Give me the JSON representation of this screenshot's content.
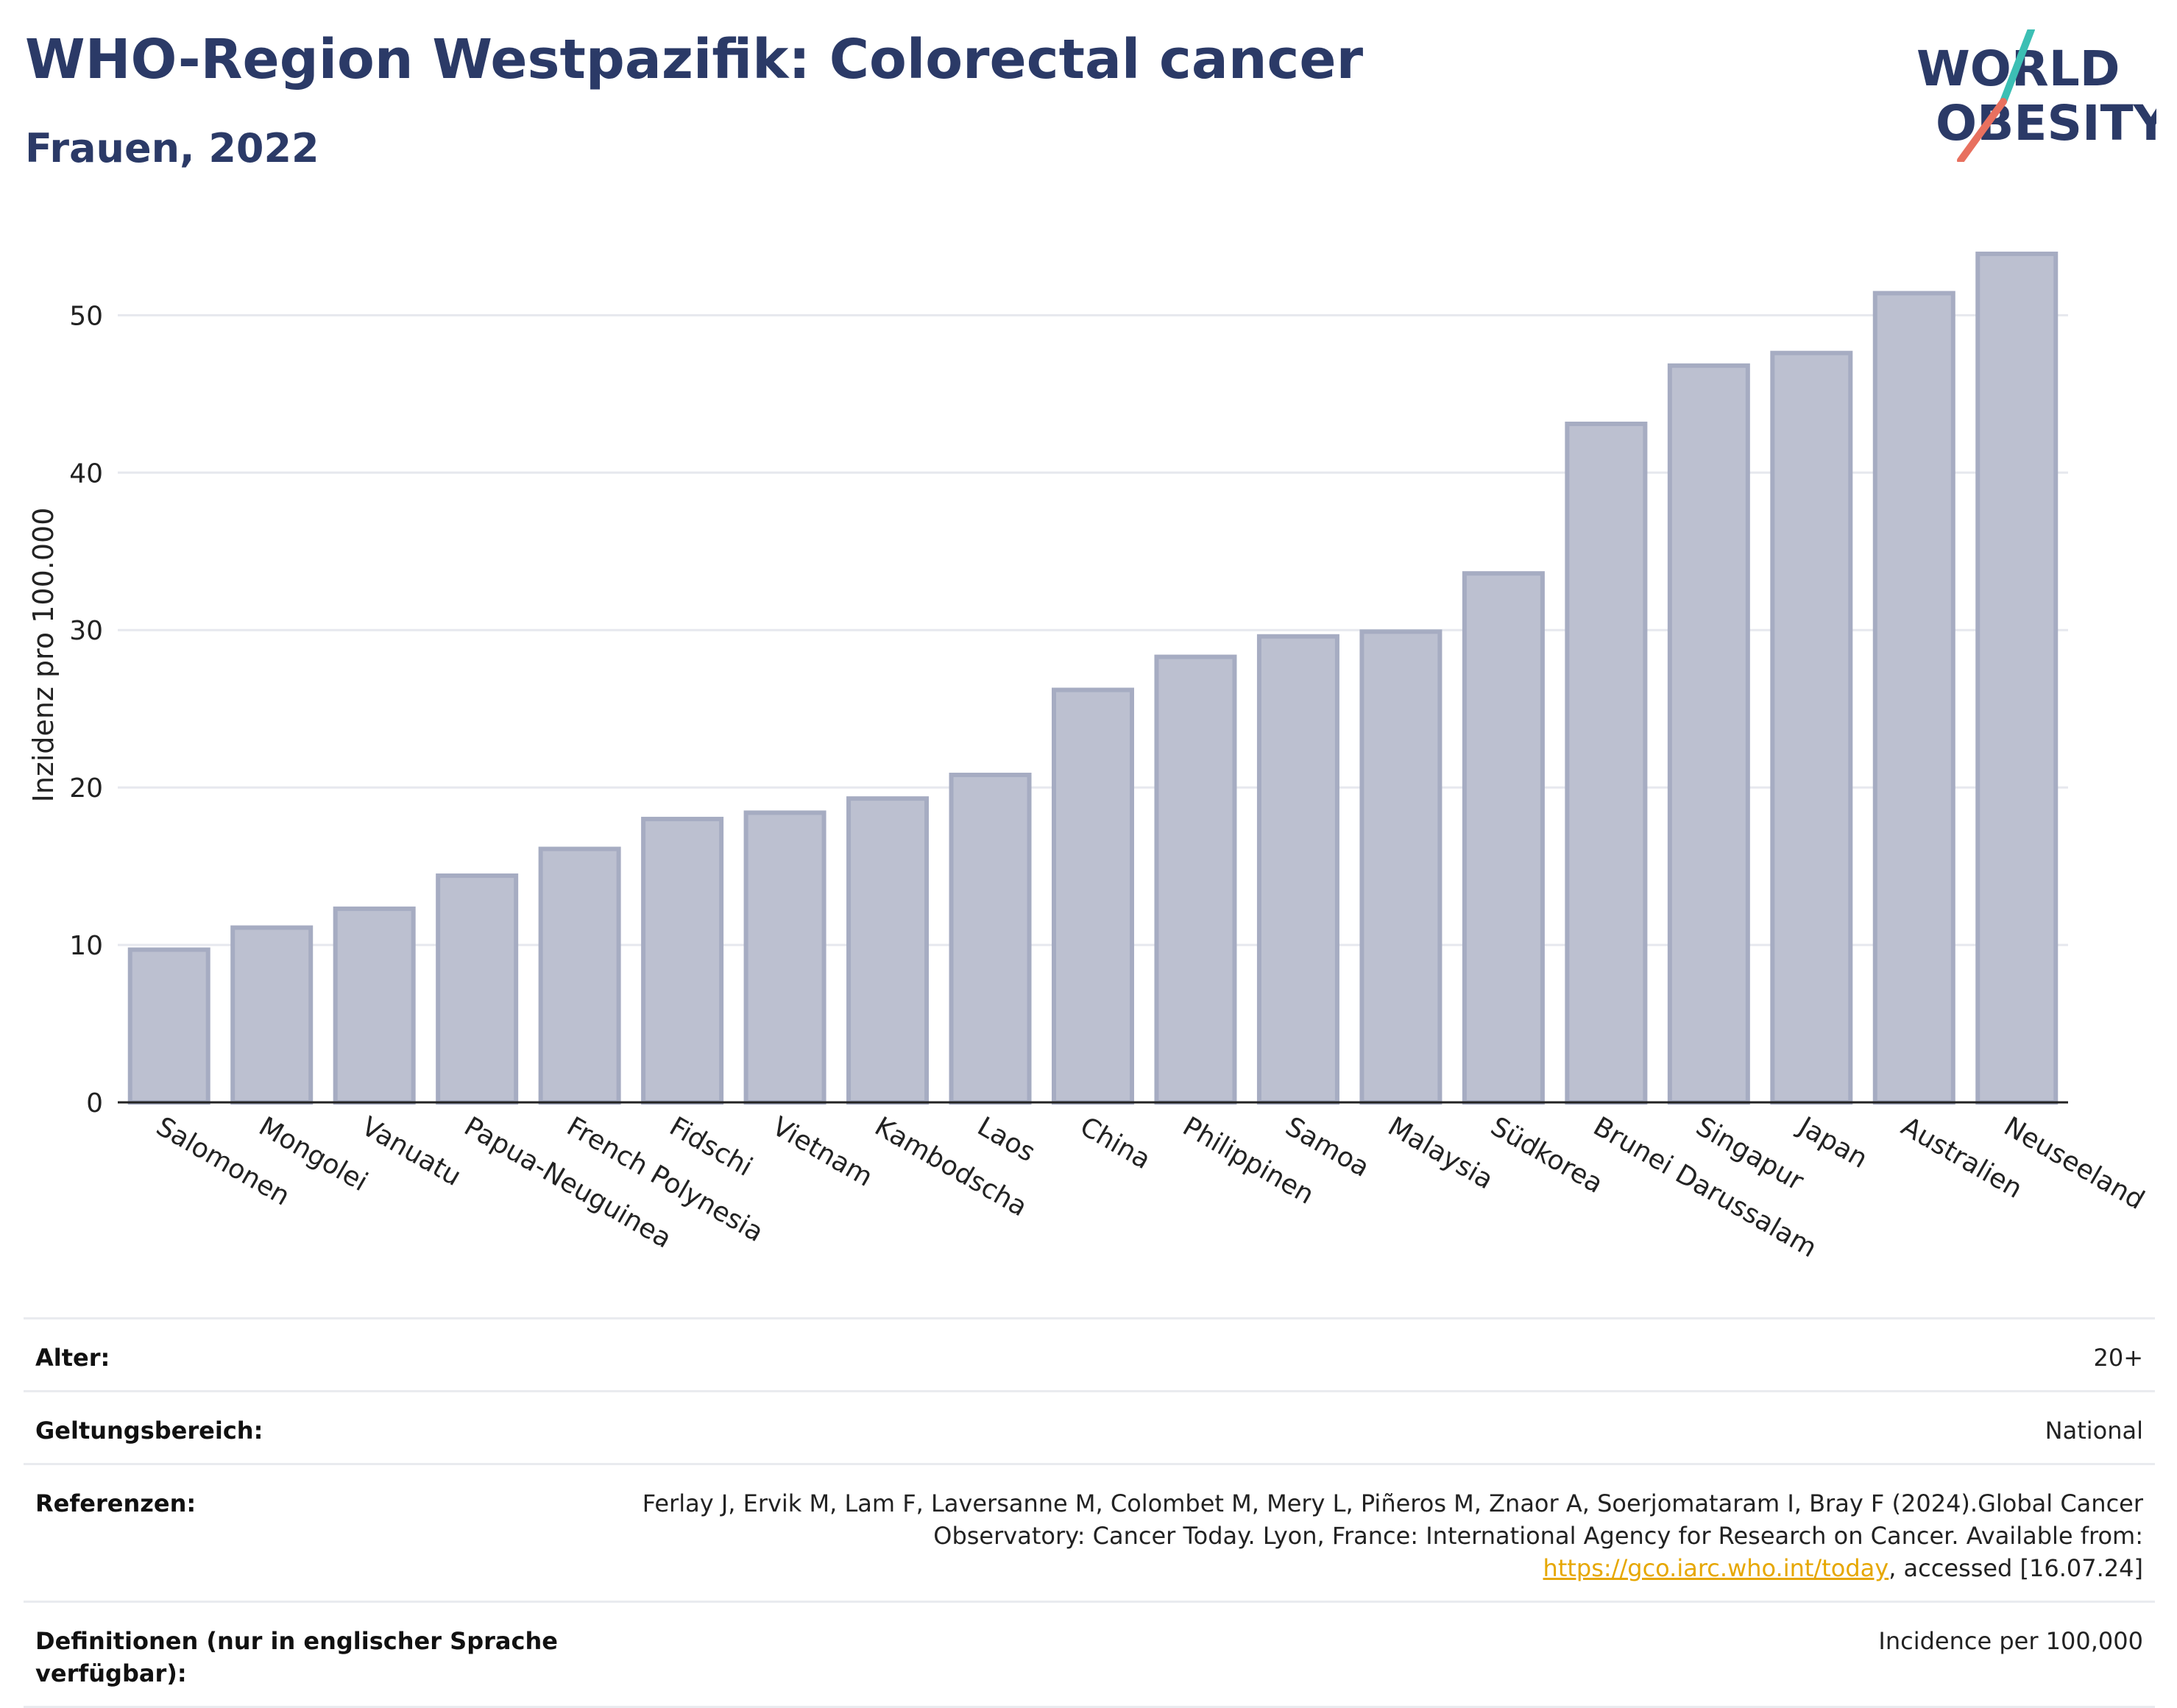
{
  "header": {
    "title": "WHO-Region Westpazifik: Colorectal cancer",
    "subtitle": "Frauen, 2022"
  },
  "logo": {
    "line1": "WORLD",
    "line2": "OBESITY",
    "colors": {
      "text": "#2b3a67",
      "teal": "#3cbfb4",
      "coral": "#e8705f"
    }
  },
  "chart_data": {
    "type": "bar",
    "categories": [
      "Salomonen",
      "Mongolei",
      "Vanuatu",
      "Papua-Neuguinea",
      "French Polynesia",
      "Fidschi",
      "Vietnam",
      "Kambodscha",
      "Laos",
      "China",
      "Philippinen",
      "Samoa",
      "Malaysia",
      "Südkorea",
      "Brunei Darussalam",
      "Singapur",
      "Japan",
      "Australien",
      "Neuseeland"
    ],
    "values": [
      9.7,
      11.1,
      12.3,
      14.4,
      16.1,
      18.0,
      18.4,
      19.3,
      20.8,
      26.2,
      28.3,
      29.6,
      29.9,
      33.6,
      43.1,
      46.8,
      47.6,
      51.4,
      53.9
    ],
    "title": "",
    "xlabel": "",
    "ylabel": "Inzidenz pro 100.000",
    "ylim": [
      0,
      56
    ],
    "yticks": [
      0,
      10,
      20,
      30,
      40,
      50
    ],
    "grid": true,
    "bar_fill": "#bcc0d0",
    "bar_stroke": "#a6acc2"
  },
  "meta": {
    "age_label": "Alter:",
    "age_value": "20+",
    "scope_label": "Geltungsbereich:",
    "scope_value": "National",
    "refs_label": "Referenzen:",
    "refs_text_1": "Ferlay J, Ervik M, Lam F, Laversanne M, Colombet M, Mery L, Piñeros M, Znaor A, Soerjomataram I, Bray F (2024).Global Cancer Observatory: Cancer Today. Lyon, France: International Agency for Research on Cancer. Available from: ",
    "refs_link": "https://gco.iarc.who.int/today",
    "refs_text_2": ", accessed [16.07.24]",
    "defs_label": "Definitionen (nur in englischer Sprache verfügbar):",
    "defs_value": "Incidence per 100,000"
  }
}
